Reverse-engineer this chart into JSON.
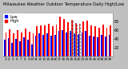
{
  "title": "Milwaukee Weather Outdoor Temperature Daily High/Low",
  "title_fontsize": 3.8,
  "highs": [
    55,
    62,
    52,
    60,
    55,
    63,
    57,
    52,
    68,
    71,
    70,
    75,
    68,
    72,
    90,
    85,
    78,
    83,
    76,
    74,
    79,
    82,
    70,
    68,
    65,
    72,
    65,
    71
  ],
  "lows": [
    38,
    42,
    32,
    41,
    35,
    43,
    38,
    28,
    48,
    52,
    50,
    52,
    48,
    50,
    58,
    60,
    54,
    58,
    52,
    51,
    55,
    58,
    48,
    46,
    44,
    50,
    45,
    49
  ],
  "xlabels": [
    "3",
    "4",
    "5",
    "6",
    "7",
    "8",
    "9",
    "10",
    "11",
    "12",
    "13",
    "14",
    "15",
    "16",
    "17",
    "18",
    "19",
    "20",
    "21",
    "22",
    "23",
    "24",
    "25",
    "26",
    "27",
    "28",
    "29",
    "30"
  ],
  "high_color": "#FF0000",
  "low_color": "#0000FF",
  "bg_color": "#c0c0c0",
  "plot_bg": "#ffffff",
  "ylim": [
    0,
    100
  ],
  "yticks": [
    20,
    40,
    60,
    80
  ],
  "ytick_fontsize": 3.5,
  "xtick_fontsize": 3.0,
  "bar_width": 0.38,
  "legend_high": "High",
  "legend_low": "Low",
  "legend_fontsize": 3.5,
  "dashed_bar_indices": [
    17,
    18,
    19
  ],
  "grid_color": "#cccccc"
}
